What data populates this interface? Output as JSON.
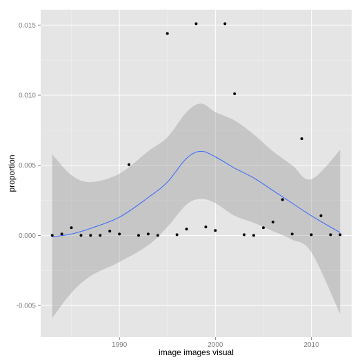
{
  "chart_data": {
    "type": "scatter",
    "title": "",
    "xlabel": "image images visual",
    "ylabel": "proportion",
    "xlim": [
      1981.8,
      2014.2
    ],
    "ylim": [
      -0.00726,
      0.0161
    ],
    "x_ticks": [
      {
        "value": 1990,
        "label": "1990"
      },
      {
        "value": 2000,
        "label": "2000"
      },
      {
        "value": 2010,
        "label": "2010"
      }
    ],
    "x_minor_ticks": [
      1985,
      1995,
      2005
    ],
    "y_ticks": [
      {
        "value": -0.005,
        "label": "-0.005"
      },
      {
        "value": 0.0,
        "label": "0.000"
      },
      {
        "value": 0.005,
        "label": "0.005"
      },
      {
        "value": 0.01,
        "label": "0.010"
      },
      {
        "value": 0.015,
        "label": "0.015"
      }
    ],
    "y_minor_ticks": [
      -0.0025,
      0.0025,
      0.0075,
      0.0125
    ],
    "grid": true,
    "points": [
      {
        "x": 1983,
        "y": 0.0
      },
      {
        "x": 1984,
        "y": 0.0001
      },
      {
        "x": 1985,
        "y": 0.00055
      },
      {
        "x": 1986,
        "y": 0.0
      },
      {
        "x": 1987,
        "y": 0.0
      },
      {
        "x": 1988,
        "y": 0.0
      },
      {
        "x": 1989,
        "y": 0.0003
      },
      {
        "x": 1990,
        "y": 0.0001
      },
      {
        "x": 1991,
        "y": 0.00505
      },
      {
        "x": 1992,
        "y": 0.0
      },
      {
        "x": 1993,
        "y": 0.0001
      },
      {
        "x": 1994,
        "y": 0.0
      },
      {
        "x": 1995,
        "y": 0.0144
      },
      {
        "x": 1996,
        "y": 5e-05
      },
      {
        "x": 1997,
        "y": 0.00045
      },
      {
        "x": 1998,
        "y": 0.0151
      },
      {
        "x": 1999,
        "y": 0.0006
      },
      {
        "x": 2000,
        "y": 0.00035
      },
      {
        "x": 2001,
        "y": 0.0151
      },
      {
        "x": 2002,
        "y": 0.0101
      },
      {
        "x": 2003,
        "y": 5e-05
      },
      {
        "x": 2004,
        "y": 0.0
      },
      {
        "x": 2005,
        "y": 0.00055
      },
      {
        "x": 2006,
        "y": 0.00095
      },
      {
        "x": 2007,
        "y": 0.00255
      },
      {
        "x": 2008,
        "y": 0.0001
      },
      {
        "x": 2009,
        "y": 0.0069
      },
      {
        "x": 2010,
        "y": 5e-05
      },
      {
        "x": 2011,
        "y": 0.0014
      },
      {
        "x": 2012,
        "y": 5e-05
      },
      {
        "x": 2013,
        "y": 5e-05
      }
    ],
    "smooth": {
      "x": [
        1983,
        1985,
        1987,
        1990,
        1993,
        1995,
        1997,
        1998.5,
        2000,
        2002,
        2004,
        2006,
        2008,
        2010,
        2013
      ],
      "y": [
        -0.0001,
        0.0001,
        0.0005,
        0.0013,
        0.0027,
        0.0038,
        0.0055,
        0.006,
        0.0056,
        0.0048,
        0.0041,
        0.0032,
        0.0023,
        0.0014,
        0.0002
      ],
      "lower": [
        -0.0059,
        -0.0041,
        -0.0029,
        -0.0019,
        -0.0007,
        0.0006,
        0.0022,
        0.0026,
        0.0023,
        0.0014,
        0.0009,
        0.0003,
        -0.0003,
        -0.0012,
        -0.0056
      ],
      "upper": [
        0.0058,
        0.0043,
        0.0038,
        0.0044,
        0.006,
        0.007,
        0.0088,
        0.0094,
        0.0088,
        0.0082,
        0.0072,
        0.006,
        0.005,
        0.004,
        0.0061
      ]
    },
    "colors": {
      "panel_bg": "#e5e5e5",
      "grid_major": "#ffffff",
      "grid_minor": "#f2f2f2",
      "point": "#000000",
      "line": "#3366ff",
      "ribbon": "#999999",
      "ribbon_opacity": 0.4
    }
  }
}
